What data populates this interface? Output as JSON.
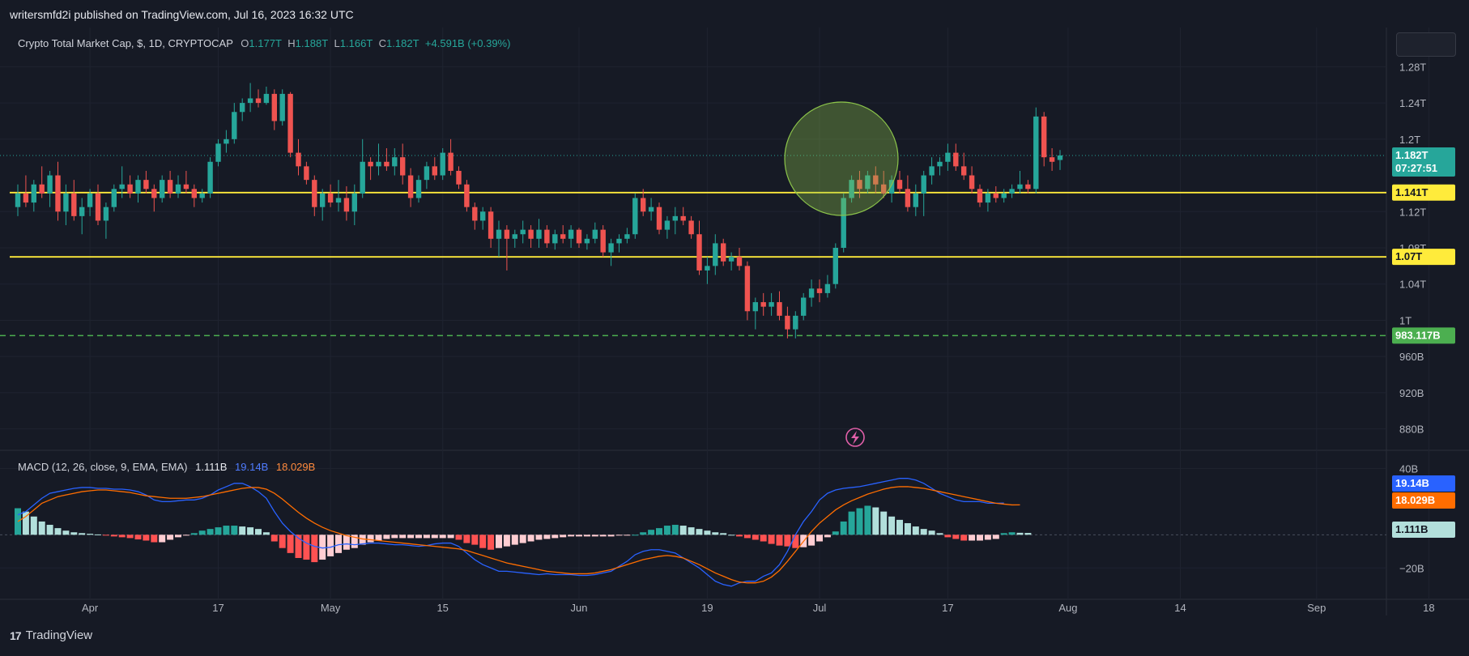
{
  "header": {
    "published": "writersmfd2i published on TradingView.com, Jul 16, 2023 16:32 UTC"
  },
  "legend": {
    "title": "Crypto Total Market Cap, $, 1D, CRYPTOCAP",
    "o_label": "O",
    "o_value": "1.177T",
    "h_label": "H",
    "h_value": "1.188T",
    "l_label": "L",
    "l_value": "1.166T",
    "c_label": "C",
    "c_value": "1.182T",
    "change": "+4.591B (+0.39%)"
  },
  "macd_legend": {
    "label": "MACD (12, 26, close, 9, EMA, EMA)",
    "hist": "1.111B",
    "macd": "19.14B",
    "signal": "18.029B"
  },
  "price_axis": {
    "ticks": [
      "1.28T",
      "1.24T",
      "1.2T",
      "1.12T",
      "1.08T",
      "1.04T",
      "1T",
      "960B",
      "920B",
      "880B"
    ]
  },
  "macd_axis": {
    "ticks": [
      "40B",
      "−20B"
    ]
  },
  "time_axis": {
    "ticks": [
      "Apr",
      "17",
      "May",
      "15",
      "Jun",
      "19",
      "Jul",
      "17",
      "Aug",
      "14",
      "Sep",
      "18"
    ]
  },
  "badges": {
    "last_price": "1.182T",
    "countdown": "07:27:51",
    "line1": "1.141T",
    "line2": "1.07T",
    "dashed": "983.117B",
    "macd": "19.14B",
    "signal": "18.029B",
    "hist": "1.111B"
  },
  "footer": {
    "brand": "TradingView"
  },
  "colors": {
    "bg": "#161a25",
    "up": "#26a69a",
    "down": "#ef5350",
    "support": "#ffeb3b",
    "dashed": "#4caf50",
    "macd": "#2962ff",
    "signal": "#ff6d00",
    "text": "#b2b5be"
  },
  "chart_data": [
    {
      "type": "candlestick",
      "title": "Crypto Total Market Cap, $, 1D, CRYPTOCAP",
      "units": "USD trillions",
      "x_ticks": [
        "Apr",
        "17",
        "May",
        "15",
        "Jun",
        "19",
        "Jul",
        "17",
        "Aug",
        "14",
        "Sep",
        "18"
      ],
      "ylim": [
        0.86,
        1.3
      ],
      "start": "2023-03-23",
      "ohlc": [
        [
          1.125,
          1.15,
          1.115,
          1.14
        ],
        [
          1.14,
          1.16,
          1.125,
          1.13
        ],
        [
          1.13,
          1.155,
          1.12,
          1.15
        ],
        [
          1.15,
          1.17,
          1.135,
          1.14
        ],
        [
          1.14,
          1.165,
          1.125,
          1.16
        ],
        [
          1.16,
          1.175,
          1.11,
          1.12
        ],
        [
          1.12,
          1.15,
          1.105,
          1.14
        ],
        [
          1.14,
          1.155,
          1.11,
          1.115
        ],
        [
          1.115,
          1.135,
          1.095,
          1.125
        ],
        [
          1.125,
          1.145,
          1.115,
          1.14
        ],
        [
          1.14,
          1.15,
          1.105,
          1.11
        ],
        [
          1.11,
          1.13,
          1.09,
          1.125
        ],
        [
          1.125,
          1.15,
          1.12,
          1.145
        ],
        [
          1.145,
          1.17,
          1.135,
          1.15
        ],
        [
          1.15,
          1.16,
          1.135,
          1.14
        ],
        [
          1.14,
          1.16,
          1.13,
          1.155
        ],
        [
          1.155,
          1.165,
          1.14,
          1.145
        ],
        [
          1.145,
          1.15,
          1.12,
          1.135
        ],
        [
          1.135,
          1.16,
          1.13,
          1.155
        ],
        [
          1.155,
          1.165,
          1.135,
          1.14
        ],
        [
          1.14,
          1.16,
          1.135,
          1.15
        ],
        [
          1.15,
          1.165,
          1.14,
          1.145
        ],
        [
          1.145,
          1.15,
          1.125,
          1.135
        ],
        [
          1.135,
          1.145,
          1.13,
          1.14
        ],
        [
          1.14,
          1.18,
          1.135,
          1.175
        ],
        [
          1.175,
          1.2,
          1.17,
          1.195
        ],
        [
          1.195,
          1.21,
          1.185,
          1.2
        ],
        [
          1.2,
          1.24,
          1.195,
          1.23
        ],
        [
          1.23,
          1.245,
          1.22,
          1.24
        ],
        [
          1.24,
          1.262,
          1.23,
          1.245
        ],
        [
          1.245,
          1.255,
          1.235,
          1.24
        ],
        [
          1.24,
          1.258,
          1.238,
          1.25
        ],
        [
          1.25,
          1.255,
          1.21,
          1.22
        ],
        [
          1.22,
          1.255,
          1.215,
          1.25
        ],
        [
          1.25,
          1.252,
          1.18,
          1.185
        ],
        [
          1.185,
          1.2,
          1.16,
          1.17
        ],
        [
          1.17,
          1.175,
          1.15,
          1.155
        ],
        [
          1.155,
          1.16,
          1.115,
          1.125
        ],
        [
          1.125,
          1.145,
          1.11,
          1.14
        ],
        [
          1.14,
          1.15,
          1.125,
          1.13
        ],
        [
          1.13,
          1.155,
          1.12,
          1.135
        ],
        [
          1.135,
          1.148,
          1.11,
          1.12
        ],
        [
          1.12,
          1.15,
          1.105,
          1.14
        ],
        [
          1.14,
          1.2,
          1.135,
          1.175
        ],
        [
          1.175,
          1.18,
          1.155,
          1.17
        ],
        [
          1.17,
          1.195,
          1.16,
          1.175
        ],
        [
          1.175,
          1.19,
          1.165,
          1.17
        ],
        [
          1.17,
          1.19,
          1.16,
          1.18
        ],
        [
          1.18,
          1.195,
          1.15,
          1.16
        ],
        [
          1.16,
          1.168,
          1.125,
          1.135
        ],
        [
          1.135,
          1.16,
          1.13,
          1.155
        ],
        [
          1.155,
          1.175,
          1.145,
          1.17
        ],
        [
          1.17,
          1.18,
          1.155,
          1.16
        ],
        [
          1.16,
          1.19,
          1.155,
          1.185
        ],
        [
          1.185,
          1.2,
          1.16,
          1.165
        ],
        [
          1.165,
          1.17,
          1.145,
          1.15
        ],
        [
          1.15,
          1.155,
          1.12,
          1.125
        ],
        [
          1.125,
          1.13,
          1.1,
          1.11
        ],
        [
          1.11,
          1.125,
          1.1,
          1.12
        ],
        [
          1.12,
          1.125,
          1.08,
          1.09
        ],
        [
          1.09,
          1.11,
          1.07,
          1.1
        ],
        [
          1.1,
          1.105,
          1.055,
          1.09
        ],
        [
          1.09,
          1.1,
          1.08,
          1.095
        ],
        [
          1.095,
          1.11,
          1.085,
          1.1
        ],
        [
          1.1,
          1.105,
          1.08,
          1.09
        ],
        [
          1.09,
          1.112,
          1.08,
          1.1
        ],
        [
          1.1,
          1.105,
          1.08,
          1.085
        ],
        [
          1.085,
          1.1,
          1.078,
          1.095
        ],
        [
          1.095,
          1.105,
          1.085,
          1.09
        ],
        [
          1.09,
          1.105,
          1.08,
          1.1
        ],
        [
          1.1,
          1.102,
          1.08,
          1.085
        ],
        [
          1.085,
          1.095,
          1.078,
          1.09
        ],
        [
          1.09,
          1.108,
          1.085,
          1.1
        ],
        [
          1.1,
          1.105,
          1.07,
          1.075
        ],
        [
          1.075,
          1.09,
          1.06,
          1.085
        ],
        [
          1.085,
          1.095,
          1.075,
          1.09
        ],
        [
          1.09,
          1.102,
          1.085,
          1.095
        ],
        [
          1.095,
          1.14,
          1.09,
          1.135
        ],
        [
          1.135,
          1.145,
          1.115,
          1.12
        ],
        [
          1.12,
          1.135,
          1.11,
          1.125
        ],
        [
          1.125,
          1.13,
          1.095,
          1.1
        ],
        [
          1.1,
          1.115,
          1.09,
          1.11
        ],
        [
          1.11,
          1.125,
          1.095,
          1.115
        ],
        [
          1.115,
          1.125,
          1.105,
          1.11
        ],
        [
          1.11,
          1.115,
          1.09,
          1.095
        ],
        [
          1.095,
          1.11,
          1.05,
          1.055
        ],
        [
          1.055,
          1.07,
          1.04,
          1.06
        ],
        [
          1.06,
          1.095,
          1.05,
          1.085
        ],
        [
          1.085,
          1.09,
          1.06,
          1.065
        ],
        [
          1.065,
          1.075,
          1.055,
          1.07
        ],
        [
          1.07,
          1.08,
          1.055,
          1.06
        ],
        [
          1.06,
          1.065,
          1.0,
          1.01
        ],
        [
          1.01,
          1.025,
          0.99,
          1.02
        ],
        [
          1.02,
          1.03,
          1.005,
          1.015
        ],
        [
          1.015,
          1.03,
          1.005,
          1.02
        ],
        [
          1.02,
          1.032,
          1.0,
          1.005
        ],
        [
          1.005,
          1.015,
          0.98,
          0.99
        ],
        [
          0.99,
          1.01,
          0.98,
          1.005
        ],
        [
          1.005,
          1.03,
          1.0,
          1.025
        ],
        [
          1.025,
          1.045,
          1.015,
          1.035
        ],
        [
          1.035,
          1.045,
          1.02,
          1.03
        ],
        [
          1.03,
          1.05,
          1.025,
          1.04
        ],
        [
          1.04,
          1.085,
          1.035,
          1.08
        ],
        [
          1.08,
          1.14,
          1.075,
          1.135
        ],
        [
          1.135,
          1.16,
          1.13,
          1.155
        ],
        [
          1.155,
          1.165,
          1.135,
          1.145
        ],
        [
          1.145,
          1.165,
          1.14,
          1.16
        ],
        [
          1.16,
          1.17,
          1.14,
          1.15
        ],
        [
          1.15,
          1.165,
          1.135,
          1.14
        ],
        [
          1.14,
          1.16,
          1.13,
          1.155
        ],
        [
          1.155,
          1.165,
          1.14,
          1.145
        ],
        [
          1.145,
          1.16,
          1.12,
          1.125
        ],
        [
          1.125,
          1.15,
          1.115,
          1.14
        ],
        [
          1.14,
          1.165,
          1.115,
          1.16
        ],
        [
          1.16,
          1.18,
          1.15,
          1.17
        ],
        [
          1.17,
          1.18,
          1.16,
          1.175
        ],
        [
          1.175,
          1.195,
          1.165,
          1.185
        ],
        [
          1.185,
          1.195,
          1.165,
          1.17
        ],
        [
          1.17,
          1.185,
          1.155,
          1.16
        ],
        [
          1.16,
          1.17,
          1.14,
          1.145
        ],
        [
          1.145,
          1.15,
          1.125,
          1.13
        ],
        [
          1.13,
          1.145,
          1.12,
          1.14
        ],
        [
          1.14,
          1.148,
          1.13,
          1.135
        ],
        [
          1.135,
          1.145,
          1.13,
          1.14
        ],
        [
          1.14,
          1.15,
          1.135,
          1.145
        ],
        [
          1.145,
          1.165,
          1.14,
          1.15
        ],
        [
          1.15,
          1.155,
          1.14,
          1.145
        ],
        [
          1.145,
          1.235,
          1.14,
          1.225
        ],
        [
          1.225,
          1.23,
          1.17,
          1.18
        ],
        [
          1.18,
          1.19,
          1.165,
          1.175
        ],
        [
          1.177,
          1.188,
          1.166,
          1.182
        ]
      ],
      "hlines": [
        {
          "value": 1.141,
          "label": "1.141T",
          "style": "solid"
        },
        {
          "value": 1.07,
          "label": "1.07T",
          "style": "solid"
        },
        {
          "value": 0.983117,
          "label": "983.117B",
          "style": "dashed"
        }
      ],
      "last": {
        "value": 1.182,
        "label": "1.182T"
      }
    },
    {
      "type": "macd",
      "title": "MACD (12, 26, close, 9, EMA, EMA)",
      "units": "USD billions",
      "ylim": [
        -35,
        48
      ],
      "macd": [
        12,
        14,
        18,
        22,
        25,
        26,
        27,
        28,
        28.5,
        28.5,
        28,
        28,
        27.5,
        27.5,
        27,
        26,
        24,
        21,
        20,
        20,
        20.5,
        21,
        21,
        22,
        24,
        27,
        29,
        31,
        31,
        29,
        26,
        22,
        14,
        7,
        2,
        -2,
        -5,
        -7,
        -8,
        -7.5,
        -6,
        -5.5,
        -6,
        -5.5,
        -5,
        -5,
        -5.5,
        -6,
        -6,
        -6.5,
        -7,
        -6.5,
        -5.5,
        -5,
        -5,
        -7,
        -11,
        -15,
        -18,
        -20,
        -22,
        -22,
        -22.5,
        -23,
        -23.5,
        -24,
        -23.5,
        -24,
        -24,
        -24,
        -24.5,
        -24.5,
        -24,
        -23,
        -22,
        -19,
        -16,
        -12,
        -10,
        -9,
        -9,
        -10,
        -11,
        -14,
        -17,
        -20,
        -24,
        -28,
        -30,
        -31,
        -29,
        -28,
        -28,
        -25,
        -23,
        -18,
        -10,
        0,
        8,
        14,
        21,
        25,
        27,
        28,
        28.5,
        29,
        30,
        31,
        32,
        33,
        34,
        34,
        33,
        31,
        28,
        25,
        23,
        21,
        20,
        20,
        20,
        19,
        19,
        19.14
      ],
      "signal": [
        8,
        11,
        15,
        19,
        21,
        23,
        24,
        25,
        26,
        26.5,
        27,
        27,
        26.5,
        26,
        25.5,
        24.5,
        23.5,
        23,
        22.5,
        22,
        22,
        22,
        22.5,
        23,
        24,
        25,
        26,
        27,
        28,
        28.5,
        28.5,
        27.5,
        25,
        21.5,
        17.5,
        13.5,
        10,
        7,
        4.5,
        2.5,
        1,
        -0.5,
        -1.5,
        -2.5,
        -3,
        -3.5,
        -4,
        -4.5,
        -5,
        -5.5,
        -6,
        -6.5,
        -7,
        -7.5,
        -8,
        -8.5,
        -9.5,
        -11,
        -12.5,
        -14,
        -15.5,
        -17,
        -18,
        -19,
        -20,
        -21,
        -22,
        -22.5,
        -23,
        -23.5,
        -23.5,
        -23.5,
        -23,
        -22,
        -21,
        -19.5,
        -18,
        -16.5,
        -15,
        -14,
        -13,
        -12.5,
        -13,
        -14,
        -16,
        -18,
        -20.5,
        -23,
        -25,
        -27,
        -28.5,
        -29,
        -29,
        -28,
        -25.5,
        -21.5,
        -16,
        -10,
        -4,
        2,
        7,
        11,
        15,
        18,
        20.5,
        22.5,
        24.5,
        26,
        27.5,
        28.5,
        29,
        29,
        28.5,
        28,
        27,
        26,
        25,
        24,
        23,
        22,
        21,
        20,
        19,
        18.5,
        18,
        18.029
      ],
      "histogram": [
        16,
        14,
        11,
        8,
        6,
        4,
        2.5,
        1.5,
        1,
        0.6,
        0.2,
        -0.2,
        -1,
        -1.5,
        -2,
        -2.8,
        -3.5,
        -4.5,
        -4.5,
        -3,
        -1.5,
        -0.5,
        1,
        2.5,
        3.5,
        4.5,
        5.5,
        5.5,
        5,
        4.5,
        3.5,
        1.5,
        -4,
        -8,
        -11,
        -14,
        -15,
        -16.5,
        -15,
        -13,
        -11,
        -9,
        -8,
        -6,
        -4.5,
        -3.5,
        -2.5,
        -2,
        -2,
        -2,
        -2,
        -2,
        -2,
        -2,
        -2,
        -3,
        -5,
        -6,
        -8,
        -9,
        -8,
        -7,
        -6,
        -5,
        -4,
        -3,
        -2.5,
        -2,
        -1.5,
        -1,
        -1,
        -1,
        -1,
        -1,
        -1,
        -0.5,
        -0.5,
        0,
        1.5,
        3,
        4,
        5.5,
        6,
        5.5,
        4.5,
        3.5,
        2.5,
        1.5,
        1,
        0,
        -1,
        -2,
        -3,
        -4,
        -5.5,
        -6.5,
        -7,
        -8,
        -7.5,
        -6.5,
        -4,
        -1.5,
        2,
        8,
        14,
        16,
        17.5,
        16.5,
        14,
        11,
        9,
        7,
        5,
        3.5,
        2.5,
        1,
        -1.5,
        -2.5,
        -3.5,
        -3.5,
        -3.5,
        -3,
        -2.5,
        1,
        1.5,
        1.2,
        1.111
      ]
    }
  ]
}
